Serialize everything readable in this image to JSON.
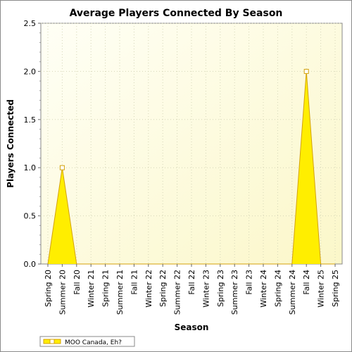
{
  "chart_data": {
    "type": "area",
    "title": "Average Players Connected By Season",
    "xlabel": "Season",
    "ylabel": "Players Connected",
    "categories": [
      "Spring 20",
      "Summer 20",
      "Fall 20",
      "Winter 21",
      "Spring 21",
      "Summer 21",
      "Fall 21",
      "Winter 22",
      "Spring 22",
      "Summer 22",
      "Fall 22",
      "Winter 23",
      "Spring 23",
      "Summer 23",
      "Fall 23",
      "Winter 24",
      "Spring 24",
      "Summer 24",
      "Fall 24",
      "Winter 25",
      "Spring 25"
    ],
    "series": [
      {
        "name": "MOO Canada, Eh?",
        "values": [
          0,
          1,
          0,
          0,
          0,
          0,
          0,
          0,
          0,
          0,
          0,
          0,
          0,
          0,
          0,
          0,
          0,
          0,
          2,
          0,
          0
        ],
        "color": "#ffee00",
        "line_color": "#d4a20a"
      }
    ],
    "ylim": [
      0,
      2.5
    ],
    "yticks": [
      "0.0",
      "0.5",
      "1.0",
      "1.5",
      "2.0",
      "2.5"
    ],
    "grid": true,
    "legend_position": "bottom-left",
    "plot_background": "#fdfde6"
  }
}
